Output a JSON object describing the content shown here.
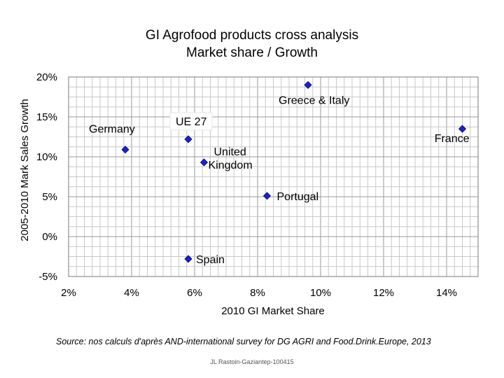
{
  "chart_data": {
    "type": "scatter",
    "title": [
      "GI Agrofood products cross analysis",
      "Market share / Growth"
    ],
    "xlabel": "2010 GI Market Share",
    "ylabel": "2005-2010 Mark Sales Growth",
    "xlim": [
      2,
      15
    ],
    "ylim": [
      -5,
      20
    ],
    "xticks": [
      2,
      4,
      6,
      8,
      10,
      12,
      14
    ],
    "xtick_labels": [
      "2%",
      "4%",
      "6%",
      "8%",
      "10%",
      "12%",
      "14%"
    ],
    "yticks": [
      -5,
      0,
      5,
      10,
      15,
      20
    ],
    "ytick_labels": [
      "-5%",
      "0%",
      "5%",
      "10%",
      "15%",
      "20%"
    ],
    "grid": true,
    "marker_color": "#1f1fd0",
    "points": [
      {
        "name": "Germany",
        "lines": [
          "Germany"
        ],
        "x": 3.8,
        "y": 10.9
      },
      {
        "name": "UE 27",
        "lines": [
          "UE 27"
        ],
        "x": 5.8,
        "y": 12.2,
        "boxed": true
      },
      {
        "name": "United Kingdom",
        "lines": [
          "United",
          "Kingdom"
        ],
        "x": 6.3,
        "y": 9.3
      },
      {
        "name": "Greece & Italy",
        "lines": [
          "Greece & Italy"
        ],
        "x": 9.6,
        "y": 19.0
      },
      {
        "name": "France",
        "lines": [
          "France"
        ],
        "x": 14.5,
        "y": 13.5
      },
      {
        "name": "Portugal",
        "lines": [
          "Portugal"
        ],
        "x": 8.3,
        "y": 5.1
      },
      {
        "name": "Spain",
        "lines": [
          "Spain"
        ],
        "x": 5.8,
        "y": -2.8
      }
    ]
  },
  "source_text": "Source: nos calculs d'après AND-international survey for DG AGRI and Food.Drink.Europe, 2013",
  "footer_text": "JL Rastoin-Gaziantep-100415"
}
